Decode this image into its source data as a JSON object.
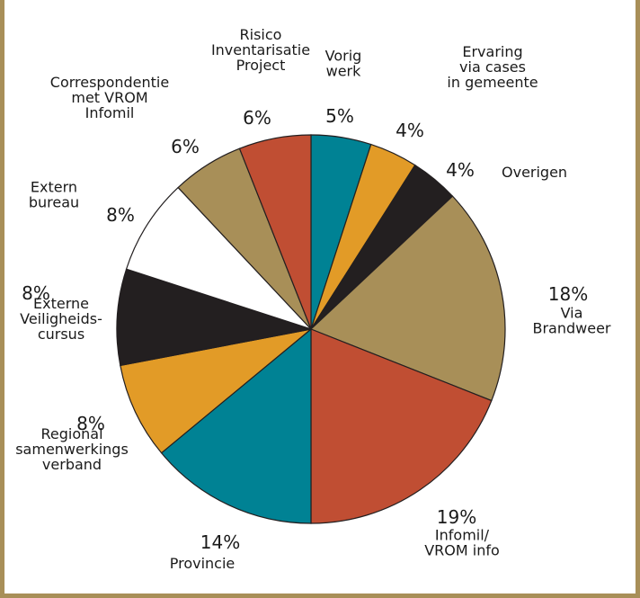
{
  "chart_data": {
    "type": "pie",
    "title": "",
    "slices": [
      {
        "label": "Vorig werk",
        "value": 5,
        "display": "5%",
        "color": "#008294"
      },
      {
        "label": "Ervaring via cases in gemeente",
        "value": 4,
        "display": "4%",
        "color": "#e29b27"
      },
      {
        "label": "Overigen",
        "value": 4,
        "display": "4%",
        "color": "#231f20"
      },
      {
        "label": "Via Brandweer",
        "value": 18,
        "display": "18%",
        "color": "#a88f58"
      },
      {
        "label": "Infomil/ VROM info",
        "value": 19,
        "display": "19%",
        "color": "#c04e33"
      },
      {
        "label": "Provincie",
        "value": 14,
        "display": "14%",
        "color": "#008294"
      },
      {
        "label": "Regional samenwerkings verband",
        "value": 8,
        "display": "8%",
        "color": "#e29b27"
      },
      {
        "label": "Externe Veiligheids- cursus",
        "value": 8,
        "display": "8%",
        "color": "#231f20"
      },
      {
        "label": "Extern bureau",
        "value": 8,
        "display": "8%",
        "color": "#ffffff"
      },
      {
        "label": "Correspondentie met VROM Infomil",
        "value": 6,
        "display": "6%",
        "color": "#a88f58"
      },
      {
        "label": "Risico Inventarisatie Project",
        "value": 6,
        "display": "6%",
        "color": "#c04e33"
      }
    ],
    "label_lines": [
      [
        "Vorig",
        "werk"
      ],
      [
        "Ervaring",
        "via cases",
        "in gemeente"
      ],
      [
        "Overigen"
      ],
      [
        "Via",
        "Brandweer"
      ],
      [
        "Infomil/",
        "VROM info"
      ],
      [
        "Provincie"
      ],
      [
        "Regional",
        "samenwerkings",
        "verband"
      ],
      [
        "Externe",
        "Veiligheids-",
        "cursus"
      ],
      [
        "Extern",
        "bureau"
      ],
      [
        "Correspondentie",
        "met VROM",
        "Infomil"
      ],
      [
        "Risico",
        "Inventarisatie",
        "Project"
      ]
    ]
  }
}
